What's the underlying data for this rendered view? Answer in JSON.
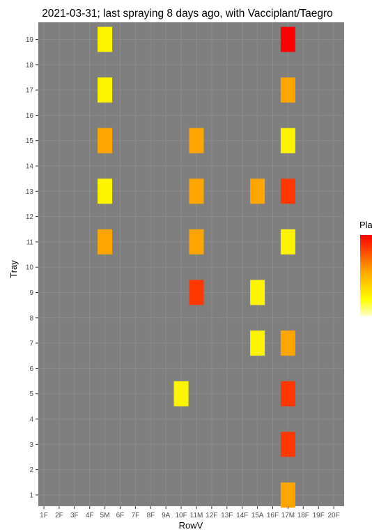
{
  "chart_data": {
    "type": "heatmap",
    "title": "2021-03-31; last spraying 8 days ago, with Vacciplant/Taegro",
    "xlabel": "RowV",
    "ylabel": "Tray",
    "x_categories": [
      "1F",
      "2F",
      "3F",
      "4F",
      "5M",
      "6F",
      "7F",
      "8F",
      "9A",
      "10F",
      "11M",
      "12F",
      "13F",
      "14F",
      "15A",
      "16F",
      "17M",
      "18F",
      "19F",
      "20F"
    ],
    "y_categories": [
      "1",
      "2",
      "3",
      "4",
      "5",
      "6",
      "7",
      "8",
      "9",
      "10",
      "11",
      "12",
      "13",
      "14",
      "15",
      "16",
      "17",
      "18",
      "19"
    ],
    "legend_title": "Pla",
    "color_scale": {
      "low": "#ffff00",
      "mid": "#ffa500",
      "high": "#ff0000"
    },
    "panel_background": "#7f7f7f",
    "grid": true,
    "legend_position": "right",
    "cells": [
      {
        "x": "5M",
        "y": "19",
        "level": 0.05
      },
      {
        "x": "17M",
        "y": "19",
        "level": 1.0
      },
      {
        "x": "5M",
        "y": "17",
        "level": 0.05
      },
      {
        "x": "17M",
        "y": "17",
        "level": 0.4
      },
      {
        "x": "5M",
        "y": "15",
        "level": 0.4
      },
      {
        "x": "11M",
        "y": "15",
        "level": 0.4
      },
      {
        "x": "17M",
        "y": "15",
        "level": 0.05
      },
      {
        "x": "5M",
        "y": "13",
        "level": 0.05
      },
      {
        "x": "11M",
        "y": "13",
        "level": 0.4
      },
      {
        "x": "15A",
        "y": "13",
        "level": 0.4
      },
      {
        "x": "17M",
        "y": "13",
        "level": 0.8
      },
      {
        "x": "5M",
        "y": "11",
        "level": 0.4
      },
      {
        "x": "11M",
        "y": "11",
        "level": 0.4
      },
      {
        "x": "17M",
        "y": "11",
        "level": 0.05
      },
      {
        "x": "11M",
        "y": "9",
        "level": 0.8
      },
      {
        "x": "15A",
        "y": "9",
        "level": 0.05
      },
      {
        "x": "15A",
        "y": "7",
        "level": 0.05
      },
      {
        "x": "17M",
        "y": "7",
        "level": 0.4
      },
      {
        "x": "10F",
        "y": "5",
        "level": 0.05
      },
      {
        "x": "17M",
        "y": "5",
        "level": 0.8
      },
      {
        "x": "17M",
        "y": "3",
        "level": 0.8
      },
      {
        "x": "17M",
        "y": "1",
        "level": 0.4
      }
    ]
  }
}
